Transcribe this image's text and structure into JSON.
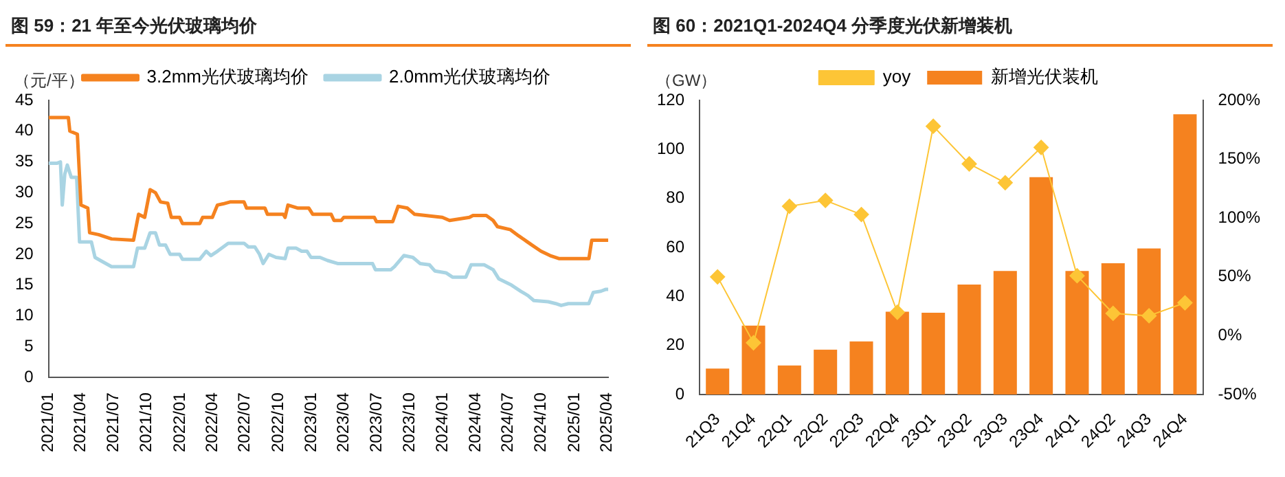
{
  "chart_data": [
    {
      "type": "line",
      "title": "图 59：21 年至今光伏玻璃均价",
      "ylabel": "（元/平）",
      "legend": "top",
      "grid": false,
      "xlim": [
        "2021-01-01",
        "2025-04-05"
      ],
      "ylim": [
        0,
        45
      ],
      "yticks": [
        0,
        5,
        10,
        15,
        20,
        25,
        30,
        35,
        40,
        45
      ],
      "xticks": [
        {
          "value": "2021-01",
          "label": "2021/01"
        },
        {
          "value": "2021-04",
          "label": "2021/04"
        },
        {
          "value": "2021-07",
          "label": "2021/07"
        },
        {
          "value": "2021-10",
          "label": "2021/10"
        },
        {
          "value": "2022-01",
          "label": "2022/01"
        },
        {
          "value": "2022-04",
          "label": "2022/04"
        },
        {
          "value": "2022-07",
          "label": "2022/07"
        },
        {
          "value": "2022-10",
          "label": "2022/10"
        },
        {
          "value": "2023-01",
          "label": "2023/01"
        },
        {
          "value": "2023-04",
          "label": "2023/04"
        },
        {
          "value": "2023-07",
          "label": "2023/07"
        },
        {
          "value": "2023-10",
          "label": "2023/10"
        },
        {
          "value": "2024-01",
          "label": "2024/01"
        },
        {
          "value": "2024-04",
          "label": "2024/04"
        },
        {
          "value": "2024-07",
          "label": "2024/07"
        },
        {
          "value": "2024-10",
          "label": "2024/10"
        },
        {
          "value": "2025-01",
          "label": "2025/01"
        },
        {
          "value": "2025-04",
          "label": "2025/04"
        }
      ],
      "series": [
        {
          "name": "3.2mm光伏玻璃均价",
          "color": "#f5821f",
          "x": [
            "2021-01-01",
            "2021-02-25",
            "2021-03-01",
            "2021-03-22",
            "2021-04-01",
            "2021-04-20",
            "2021-04-25",
            "2021-05-20",
            "2021-06-25",
            "2021-08-25",
            "2021-09-08",
            "2021-09-25",
            "2021-10-10",
            "2021-10-25",
            "2021-11-08",
            "2021-11-28",
            "2021-12-08",
            "2021-12-31",
            "2022-01-08",
            "2022-02-25",
            "2022-03-05",
            "2022-04-01",
            "2022-04-15",
            "2022-05-01",
            "2022-05-20",
            "2022-06-28",
            "2022-07-05",
            "2022-08-25",
            "2022-09-01",
            "2022-10-15",
            "2022-10-20",
            "2022-10-28",
            "2022-11-25",
            "2022-12-25",
            "2023-01-05",
            "2023-02-25",
            "2023-03-05",
            "2023-03-25",
            "2023-04-01",
            "2023-06-25",
            "2023-07-01",
            "2023-08-15",
            "2023-08-30",
            "2023-09-25",
            "2023-10-15",
            "2023-12-31",
            "2024-01-20",
            "2024-03-15",
            "2024-03-25",
            "2024-05-01",
            "2024-05-20",
            "2024-06-01",
            "2024-07-07",
            "2024-07-30",
            "2024-09-05",
            "2024-09-30",
            "2024-10-25",
            "2024-11-20",
            "2025-02-10",
            "2025-02-18",
            "2025-04-05"
          ],
          "values": [
            42.2,
            42.2,
            40,
            39.5,
            28,
            27.5,
            23.5,
            23.2,
            22.5,
            22.3,
            26.5,
            26,
            30.5,
            30,
            28.5,
            28.3,
            26,
            26,
            25,
            25,
            26,
            26,
            28,
            28.2,
            28.5,
            28.5,
            27.5,
            27.5,
            26.5,
            26.5,
            26,
            28,
            27.5,
            27.5,
            26.5,
            26.5,
            25.5,
            25.5,
            26,
            26,
            25.3,
            25.3,
            27.8,
            27.5,
            26.5,
            26,
            25.5,
            26,
            26.3,
            26.3,
            25.5,
            24.5,
            24,
            23,
            21.5,
            20.5,
            19.8,
            19.3,
            19.3,
            22.3,
            22.3
          ]
        },
        {
          "name": "2.0mm光伏玻璃均价",
          "color": "#a9d4e3",
          "x": [
            "2021-01-01",
            "2021-01-25",
            "2021-02-03",
            "2021-02-08",
            "2021-02-15",
            "2021-02-22",
            "2021-03-05",
            "2021-03-20",
            "2021-03-28",
            "2021-04-30",
            "2021-05-10",
            "2021-05-25",
            "2021-06-25",
            "2021-08-25",
            "2021-09-05",
            "2021-09-25",
            "2021-10-10",
            "2021-10-25",
            "2021-11-05",
            "2021-11-22",
            "2021-12-05",
            "2021-12-31",
            "2022-01-08",
            "2022-02-25",
            "2022-03-15",
            "2022-03-28",
            "2022-04-15",
            "2022-05-15",
            "2022-06-28",
            "2022-07-10",
            "2022-07-28",
            "2022-08-10",
            "2022-08-20",
            "2022-09-05",
            "2022-09-25",
            "2022-10-20",
            "2022-10-28",
            "2022-11-20",
            "2022-12-05",
            "2022-12-20",
            "2022-12-31",
            "2023-01-25",
            "2023-02-15",
            "2023-03-15",
            "2023-06-20",
            "2023-06-28",
            "2023-08-10",
            "2023-08-20",
            "2023-09-15",
            "2023-10-10",
            "2023-10-30",
            "2023-11-25",
            "2023-12-10",
            "2024-01-10",
            "2024-01-28",
            "2024-03-05",
            "2024-03-20",
            "2024-04-25",
            "2024-05-20",
            "2024-06-05",
            "2024-07-10",
            "2024-08-05",
            "2024-08-25",
            "2024-09-10",
            "2024-10-20",
            "2024-11-10",
            "2024-11-25",
            "2024-12-15",
            "2025-02-10",
            "2025-02-22",
            "2025-03-15",
            "2025-03-28",
            "2025-04-05"
          ],
          "values": [
            34.8,
            34.8,
            35,
            28,
            33,
            34.5,
            32.5,
            32.5,
            22,
            22,
            19.5,
            19,
            18,
            18,
            21,
            21,
            23.5,
            23.5,
            21.5,
            21.5,
            20,
            20,
            19.2,
            19.2,
            20.5,
            19.8,
            20.5,
            21.8,
            21.8,
            21.2,
            21.2,
            20,
            18.5,
            20,
            19.5,
            19.3,
            21,
            21,
            20.5,
            20.5,
            19.5,
            19.5,
            19,
            18.5,
            18.5,
            17.5,
            17.5,
            18,
            19.8,
            19.5,
            18.5,
            18.3,
            17.3,
            17,
            16.3,
            16.3,
            18.3,
            18.3,
            17.5,
            16,
            15,
            14,
            13.3,
            12.5,
            12.3,
            12,
            11.7,
            12,
            12,
            13.8,
            14,
            14.3,
            14.3
          ]
        }
      ]
    },
    {
      "type": "bar",
      "title": "图 60：2021Q1-2024Q4 分季度光伏新增装机",
      "ylabel": "（GW）",
      "legend": "top",
      "grid": false,
      "categories": [
        "21Q3",
        "21Q4",
        "22Q1",
        "22Q2",
        "22Q3",
        "22Q4",
        "23Q1",
        "23Q2",
        "23Q3",
        "23Q4",
        "24Q1",
        "24Q2",
        "24Q3",
        "24Q4"
      ],
      "ylim": [
        0,
        120
      ],
      "yticks": [
        0,
        20,
        40,
        60,
        80,
        100,
        120
      ],
      "y2lim": [
        -50,
        200
      ],
      "y2ticks": [
        {
          "value": -50,
          "label": "-50%"
        },
        {
          "value": 0,
          "label": "0%"
        },
        {
          "value": 50,
          "label": "50%"
        },
        {
          "value": 100,
          "label": "100%"
        },
        {
          "value": 150,
          "label": "150%"
        },
        {
          "value": 200,
          "label": "200%"
        }
      ],
      "series": [
        {
          "name": "新增光伏装机",
          "type": "bar",
          "color": "#f5821f",
          "values": [
            10.6,
            28.1,
            11.9,
            18.3,
            21.7,
            33.8,
            33.4,
            44.9,
            50.4,
            88.7,
            50.4,
            53.6,
            59.6,
            114.3
          ]
        },
        {
          "name": "yoy",
          "type": "line",
          "axis": "y2",
          "marker": "diamond",
          "color": "#fdc536",
          "values": [
            50,
            -6,
            110,
            115,
            103,
            20,
            178,
            146,
            130,
            160,
            51,
            19,
            17,
            28
          ]
        }
      ]
    }
  ]
}
